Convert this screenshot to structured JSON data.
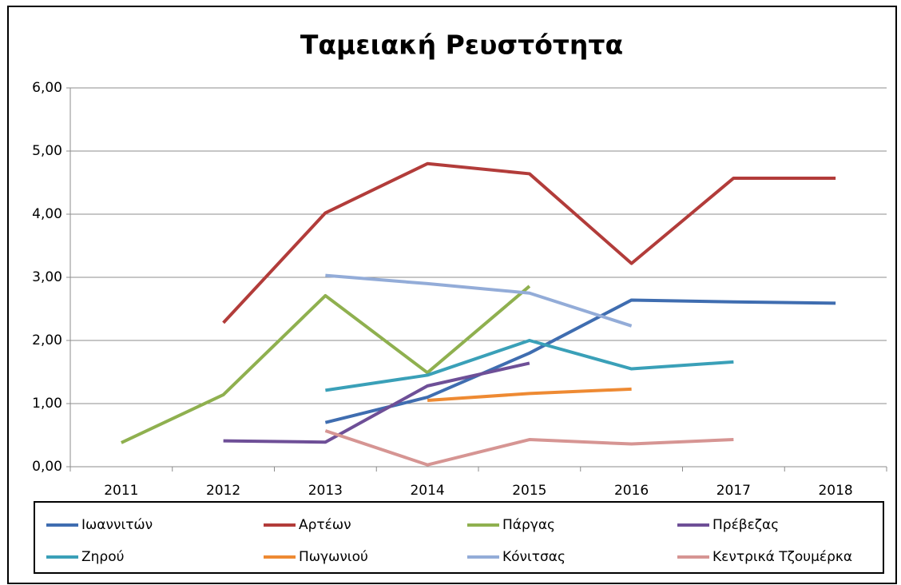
{
  "chart_data": {
    "type": "line",
    "title": "Ταμειακή Ρευστότητα",
    "categories": [
      "2011",
      "2012",
      "2013",
      "2014",
      "2015",
      "2016",
      "2017",
      "2018"
    ],
    "series": [
      {
        "name": "Ιωαννιτών",
        "color": "#3f6db0",
        "values": [
          null,
          null,
          0.7,
          1.1,
          1.8,
          2.64,
          2.61,
          2.59
        ]
      },
      {
        "name": "Αρτέων",
        "color": "#b23c3a",
        "values": [
          null,
          2.28,
          4.02,
          4.8,
          4.64,
          3.22,
          4.57,
          4.57
        ]
      },
      {
        "name": "Πάργας",
        "color": "#8fb04f",
        "values": [
          0.38,
          1.14,
          2.71,
          1.49,
          2.86,
          null,
          null,
          null
        ]
      },
      {
        "name": "Πρέβεζας",
        "color": "#6e4f97",
        "values": [
          null,
          0.41,
          0.39,
          1.28,
          1.64,
          null,
          null,
          null
        ]
      },
      {
        "name": "Ζηρού",
        "color": "#3aa0b8",
        "values": [
          null,
          null,
          1.21,
          1.45,
          2.0,
          1.55,
          1.66,
          null
        ]
      },
      {
        "name": "Πωγωνιού",
        "color": "#ee8a33",
        "values": [
          null,
          null,
          null,
          1.05,
          1.16,
          1.23,
          null,
          null
        ]
      },
      {
        "name": "Κόνιτσας",
        "color": "#93acd8",
        "values": [
          null,
          null,
          3.03,
          2.9,
          2.75,
          2.23,
          null,
          null
        ]
      },
      {
        "name": "Κεντρικά Τζουμέρκα",
        "color": "#d69593",
        "values": [
          null,
          null,
          0.57,
          0.03,
          0.43,
          0.36,
          0.43,
          null
        ]
      }
    ],
    "ylim": [
      0,
      6
    ],
    "yticks": [
      {
        "value": 0,
        "label": "0,00"
      },
      {
        "value": 1,
        "label": "1,00"
      },
      {
        "value": 2,
        "label": "2,00"
      },
      {
        "value": 3,
        "label": "3,00"
      },
      {
        "value": 4,
        "label": "4,00"
      },
      {
        "value": 5,
        "label": "5,00"
      },
      {
        "value": 6,
        "label": "6,00"
      }
    ],
    "grid": true
  }
}
